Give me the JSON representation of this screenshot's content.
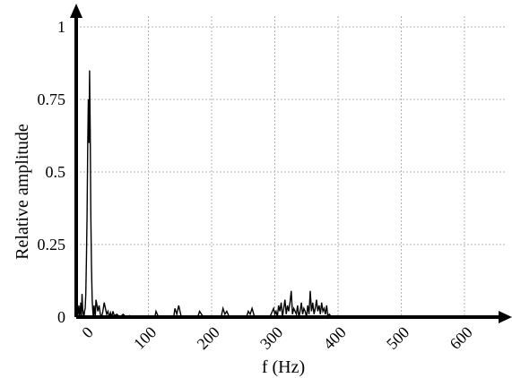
{
  "chart_data": {
    "type": "line",
    "title": "",
    "xlabel": "f (Hz)",
    "ylabel": "Relative amplitude",
    "xlim": [
      -20,
      660
    ],
    "ylim": [
      0,
      1
    ],
    "grid": true,
    "x_ticks": [
      "0",
      "100",
      "200",
      "300",
      "400",
      "500",
      "600"
    ],
    "y_ticks": [
      "0",
      "0.25",
      "0.5",
      "0.75",
      "1"
    ],
    "series": [
      {
        "x": [
          -12,
          -10,
          -9,
          -8,
          -7,
          -6,
          -5,
          -4,
          -3,
          -2,
          -1,
          0,
          1,
          2,
          3,
          4,
          5,
          6,
          7,
          8,
          9,
          10,
          11,
          12,
          13,
          14,
          15,
          16,
          17,
          18,
          20,
          22,
          24,
          26,
          28,
          30,
          32,
          34,
          36,
          38,
          40,
          42,
          44,
          46,
          50,
          55,
          60,
          65,
          70,
          80,
          95,
          110,
          112,
          115,
          118,
          121,
          125,
          135,
          140,
          142,
          145,
          148,
          152,
          160,
          170,
          178,
          181,
          184,
          187,
          190,
          200,
          210,
          215,
          218,
          221,
          224,
          228,
          240,
          250,
          255,
          258,
          261,
          264,
          268,
          280,
          290,
          292,
          294,
          296,
          298,
          300,
          302,
          304,
          306,
          308,
          310,
          312,
          314,
          316,
          318,
          320,
          322,
          324,
          326,
          328,
          330,
          332,
          334,
          336,
          338,
          340,
          342,
          344,
          346,
          348,
          350,
          352,
          354,
          356,
          358,
          360,
          362,
          364,
          366,
          368,
          370,
          372,
          374,
          376,
          378,
          380,
          382,
          384,
          386,
          390,
          400,
          420,
          440
        ],
        "values": [
          0,
          0.04,
          0,
          0.02,
          0.05,
          0,
          0.08,
          0.03,
          0.01,
          0,
          0.02,
          0.03,
          0.08,
          0.2,
          0.35,
          0.58,
          0.75,
          0.6,
          0.85,
          0.65,
          0.35,
          0.18,
          0.06,
          0.02,
          0,
          0.04,
          0.02,
          0,
          0.06,
          0.05,
          0.02,
          0.04,
          0.01,
          0,
          0.02,
          0.05,
          0.03,
          0.01,
          0.02,
          0,
          0.015,
          0,
          0.02,
          0.005,
          0.01,
          0,
          0.01,
          0,
          0.005,
          0,
          0,
          0,
          0.02,
          0.005,
          0,
          0,
          0,
          0,
          0,
          0.03,
          0.01,
          0.04,
          0,
          0,
          0,
          0,
          0.02,
          0.01,
          0,
          0,
          0,
          0,
          0,
          0.03,
          0.01,
          0.02,
          0,
          0,
          0,
          0,
          0.02,
          0.01,
          0.03,
          0,
          0,
          0,
          0,
          0.01,
          0.02,
          0.03,
          0.01,
          0.02,
          0,
          0.04,
          0.02,
          0.05,
          0,
          0.03,
          0.06,
          0.01,
          0.04,
          0.02,
          0.05,
          0.09,
          0.01,
          0.03,
          0.02,
          0.01,
          0.04,
          0,
          0.02,
          0.05,
          0.01,
          0.03,
          0.02,
          0,
          0.04,
          0.01,
          0.09,
          0.02,
          0.05,
          0.01,
          0.03,
          0.06,
          0.02,
          0.04,
          0.01,
          0.05,
          0.02,
          0.03,
          0.01,
          0.04,
          0,
          0.01,
          0,
          0,
          0,
          0
        ]
      }
    ]
  }
}
